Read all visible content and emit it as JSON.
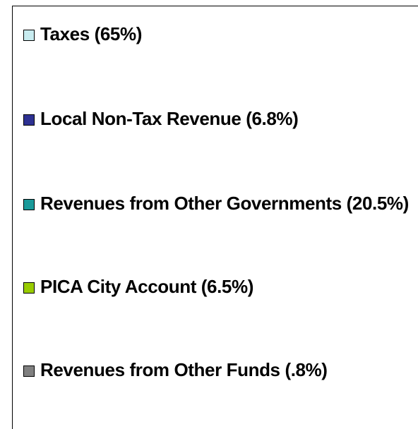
{
  "legend": {
    "items": [
      {
        "label": "Taxes (65%)",
        "color": "#c8ecf0"
      },
      {
        "label": "Local Non-Tax Revenue (6.8%)",
        "color": "#2e3192"
      },
      {
        "label": "Revenues from Other Governments (20.5%)",
        "color": "#1a9a9a"
      },
      {
        "label": "PICA City Account (6.5%)",
        "color": "#99cc00"
      },
      {
        "label": "Revenues from Other Funds (.8%)",
        "color": "#808080"
      }
    ]
  }
}
